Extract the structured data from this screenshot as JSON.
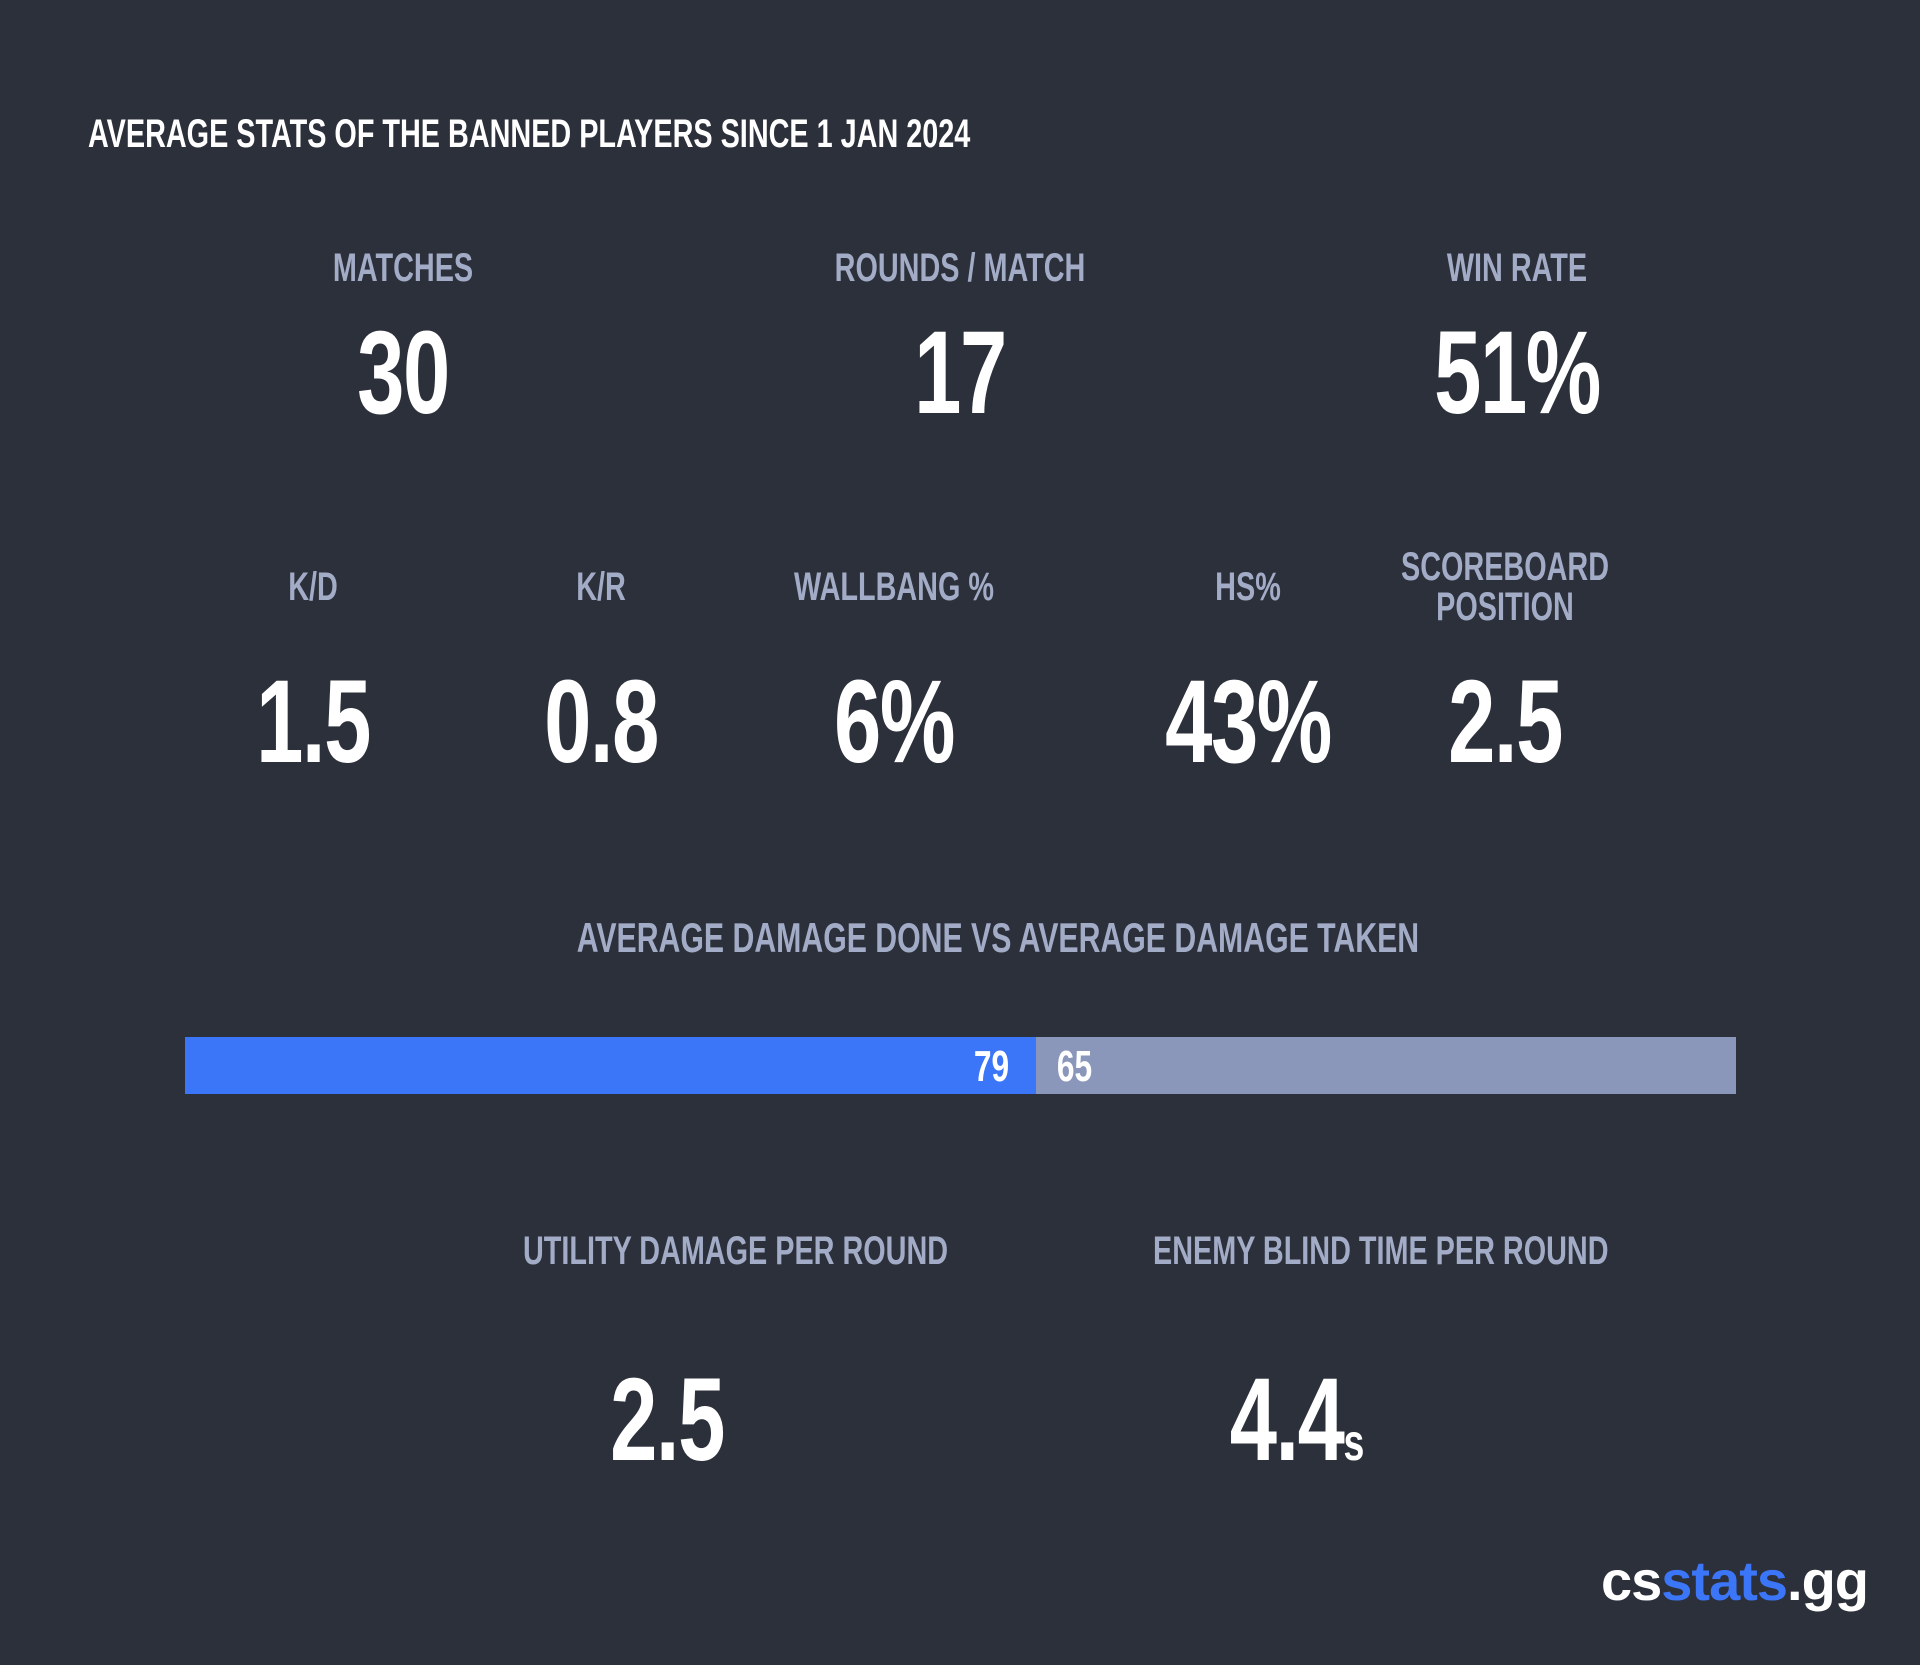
{
  "title": "AVERAGE STATS OF THE BANNED PLAYERS SINCE 1 JAN 2024",
  "top_stats": [
    {
      "label": "MATCHES",
      "value": "30"
    },
    {
      "label": "ROUNDS / MATCH",
      "value": "17"
    },
    {
      "label": "WIN RATE",
      "value": "51%"
    }
  ],
  "mid_stats": [
    {
      "label": "K/D",
      "value": "1.5"
    },
    {
      "label": "K/R",
      "value": "0.8"
    },
    {
      "label": "WALLBANG %",
      "value": "6%"
    },
    {
      "label": "HS%",
      "value": "43%"
    },
    {
      "label_line1": "SCOREBOARD",
      "label_line2": "POSITION",
      "value": "2.5"
    }
  ],
  "damage": {
    "label": "AVERAGE DAMAGE DONE VS AVERAGE DAMAGE TAKEN",
    "done": 79,
    "taken": 65,
    "done_text": "79",
    "taken_text": "65",
    "done_color": "#3c76f8",
    "taken_color": "#8a97bb"
  },
  "bottom_stats": [
    {
      "label": "UTILITY DAMAGE PER ROUND",
      "value": "2.5"
    },
    {
      "label": "ENEMY BLIND TIME PER ROUND",
      "value": "4.4",
      "unit": "s"
    }
  ],
  "logo": {
    "part1": "cs",
    "part2": "stats",
    "part3": ".gg"
  },
  "colors": {
    "background": "#2c303a",
    "label": "#a3acc7",
    "value": "#ffffff",
    "accent": "#3c76f8"
  }
}
